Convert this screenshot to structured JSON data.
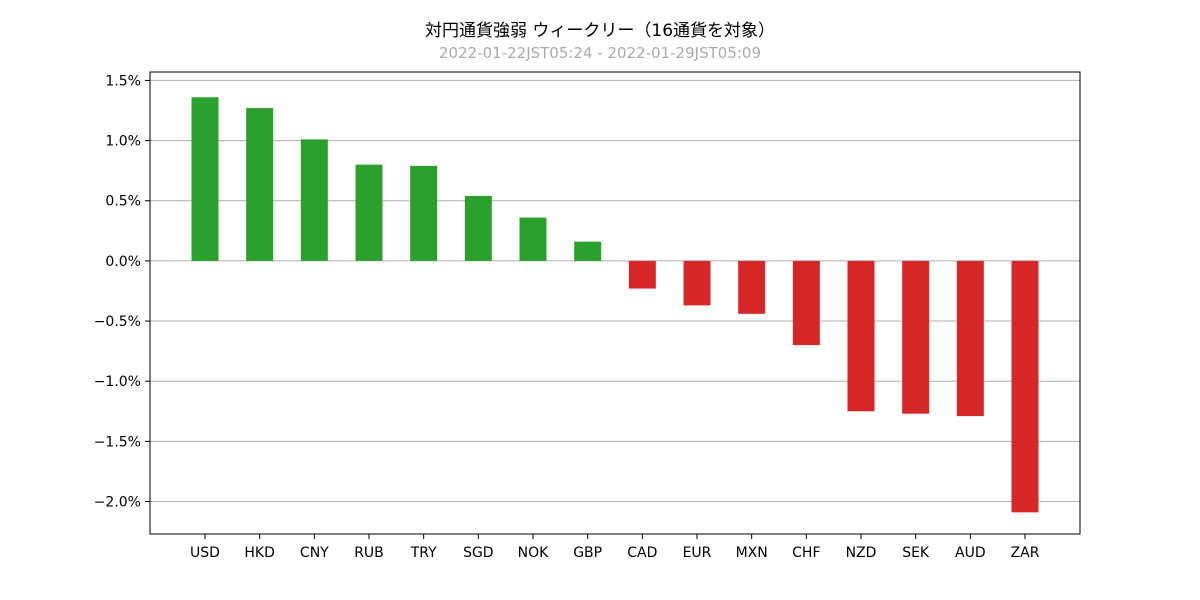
{
  "chart_data": {
    "type": "bar",
    "title": "対円通貨強弱 ウィークリー（16通貨を対象）",
    "subtitle": "2022-01-22JST05:24 - 2022-01-29JST05:09",
    "categories": [
      "USD",
      "HKD",
      "CNY",
      "RUB",
      "TRY",
      "SGD",
      "NOK",
      "GBP",
      "CAD",
      "EUR",
      "MXN",
      "CHF",
      "NZD",
      "SEK",
      "AUD",
      "ZAR"
    ],
    "values": [
      1.36,
      1.27,
      1.01,
      0.8,
      0.79,
      0.54,
      0.36,
      0.16,
      -0.23,
      -0.37,
      -0.44,
      -0.7,
      -1.25,
      -1.27,
      -1.29,
      -2.09
    ],
    "ylim": [
      -2.27,
      1.57
    ],
    "yticks": [
      1.5,
      1.0,
      0.5,
      0.0,
      -0.5,
      -1.0,
      -1.5,
      -2.0
    ],
    "ytick_labels": [
      "1.5%",
      "1.0%",
      "0.5%",
      "0.0%",
      "−0.5%",
      "−1.0%",
      "−1.5%",
      "−2.0%"
    ],
    "grid": "horizontal",
    "colors": {
      "positive": "#2ca02c",
      "negative": "#d62728",
      "grid": "#b0b0b0",
      "axis": "#000000"
    }
  }
}
